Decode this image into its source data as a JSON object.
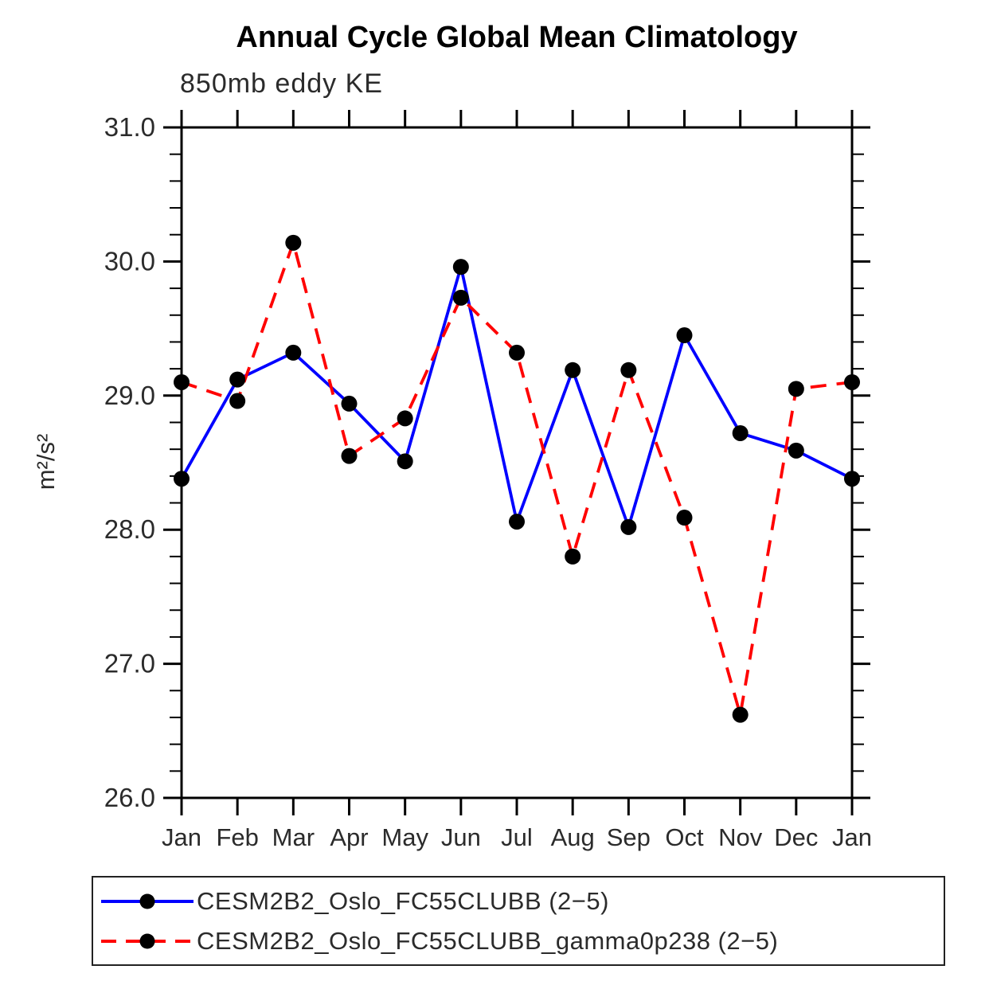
{
  "chart_data": {
    "type": "line",
    "title": "Annual Cycle Global Mean Climatology",
    "subtitle": "850mb eddy KE",
    "ylabel": "m²/s²",
    "xlabel": "",
    "categories": [
      "Jan",
      "Feb",
      "Mar",
      "Apr",
      "May",
      "Jun",
      "Jul",
      "Aug",
      "Sep",
      "Oct",
      "Nov",
      "Dec",
      "Jan"
    ],
    "series": [
      {
        "name": "CESM2B2_Oslo_FC55CLUBB (2−5)",
        "color": "#0000ff",
        "line_style": "solid",
        "marker": "filled-circle",
        "marker_color": "#000000",
        "values": [
          28.38,
          29.12,
          29.32,
          28.94,
          28.51,
          29.96,
          28.06,
          29.19,
          28.02,
          29.45,
          28.72,
          28.59,
          28.38
        ]
      },
      {
        "name": "CESM2B2_Oslo_FC55CLUBB_gamma0p238 (2−5)",
        "color": "#ff0000",
        "line_style": "dashed",
        "marker": "filled-circle",
        "marker_color": "#000000",
        "values": [
          29.1,
          28.96,
          30.14,
          28.55,
          28.83,
          29.73,
          29.32,
          27.8,
          29.19,
          28.09,
          26.62,
          29.05,
          29.1
        ]
      }
    ],
    "ylim": [
      26.0,
      31.0
    ],
    "ytick_major_interval": 1.0,
    "ytick_minor_interval": 0.2,
    "ytick_labels": [
      "26.0",
      "27.0",
      "28.0",
      "29.0",
      "30.0",
      "31.0"
    ],
    "grid": false,
    "tick_direction": "out",
    "legend_position": "bottom",
    "axis_color": "#000000",
    "label_color": "#2b2b2b"
  }
}
